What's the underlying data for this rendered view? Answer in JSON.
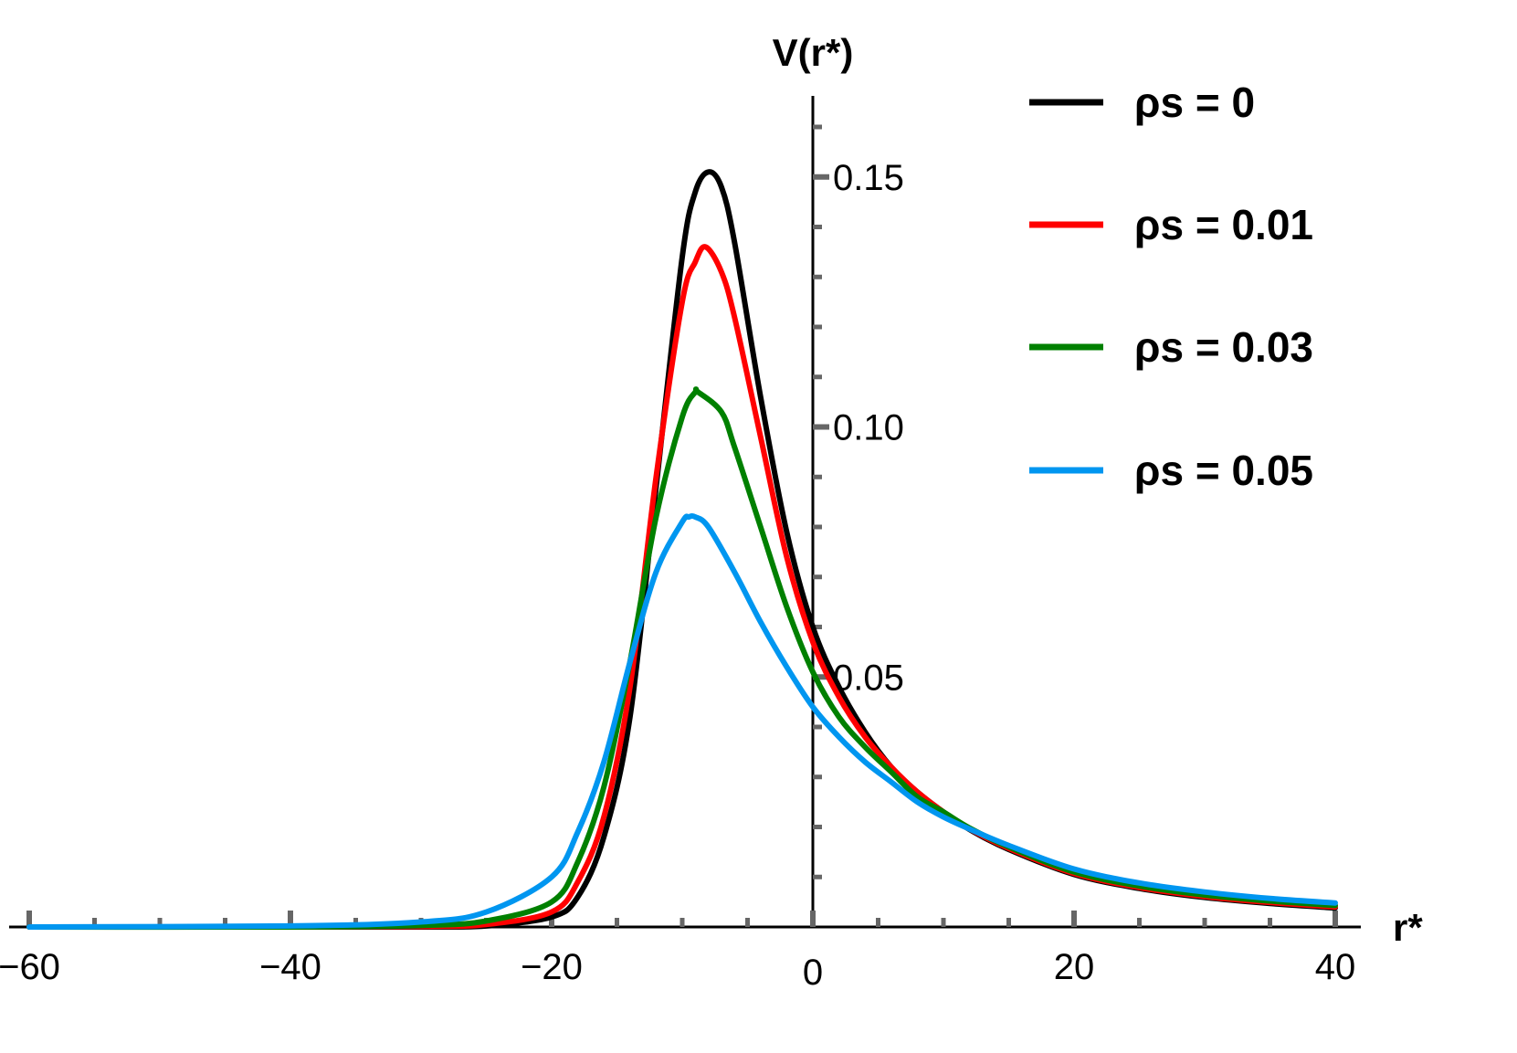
{
  "chart_data": {
    "type": "line",
    "ylabel": "V(r*)",
    "xlabel": "r*",
    "xlim": [
      -60,
      40
    ],
    "ylim": [
      0,
      0.165
    ],
    "x_ticks": [
      -60,
      -40,
      -20,
      0,
      20,
      40
    ],
    "x_tick_labels": [
      "−60",
      "−40",
      "−20",
      "0",
      "20",
      "40"
    ],
    "y_ticks": [
      0.05,
      0.1,
      0.15
    ],
    "y_tick_labels": [
      "0.05",
      "0.10",
      "0.15"
    ],
    "legend_position": "top-right",
    "series": [
      {
        "name": "ρs = 0",
        "color": "#000000",
        "x": [
          -60,
          -40,
          -30,
          -25,
          -20,
          -18,
          -16,
          -14,
          -12,
          -10,
          -9,
          -8,
          -7,
          -6,
          -4,
          -2,
          0,
          2,
          4,
          6,
          8,
          10,
          12,
          15,
          20,
          25,
          30,
          35,
          40
        ],
        "y": [
          0,
          0,
          0,
          0.0002,
          0.002,
          0.006,
          0.018,
          0.042,
          0.088,
          0.134,
          0.147,
          0.151,
          0.148,
          0.137,
          0.106,
          0.079,
          0.06,
          0.048,
          0.039,
          0.032,
          0.027,
          0.023,
          0.0195,
          0.0155,
          0.0105,
          0.0077,
          0.0059,
          0.0047,
          0.0038
        ]
      },
      {
        "name": "ρs = 0.01",
        "color": "#ff0000",
        "x": [
          -60,
          -40,
          -30,
          -25,
          -20,
          -18,
          -16,
          -14,
          -12,
          -10,
          -9,
          -8.2,
          -7,
          -6,
          -4,
          -2,
          0,
          2,
          4,
          6,
          8,
          10,
          12,
          15,
          20,
          25,
          30,
          35,
          40
        ],
        "y": [
          0,
          0,
          0.0001,
          0.0005,
          0.003,
          0.009,
          0.022,
          0.048,
          0.09,
          0.125,
          0.133,
          0.136,
          0.131,
          0.122,
          0.098,
          0.074,
          0.057,
          0.046,
          0.038,
          0.032,
          0.027,
          0.023,
          0.0196,
          0.0157,
          0.0107,
          0.0079,
          0.0061,
          0.0049,
          0.004
        ]
      },
      {
        "name": "ρs = 0.03",
        "color": "#008000",
        "x": [
          -60,
          -40,
          -30,
          -25,
          -20,
          -18,
          -16,
          -14,
          -12,
          -10,
          -9,
          -8.8,
          -7,
          -6,
          -4,
          -2,
          0,
          2,
          4,
          6,
          8,
          10,
          12,
          15,
          20,
          25,
          30,
          35,
          40
        ],
        "y": [
          0,
          0,
          0.0003,
          0.0012,
          0.005,
          0.013,
          0.028,
          0.053,
          0.082,
          0.102,
          0.107,
          0.107,
          0.103,
          0.096,
          0.08,
          0.064,
          0.051,
          0.042,
          0.036,
          0.031,
          0.026,
          0.023,
          0.0198,
          0.016,
          0.011,
          0.0082,
          0.0064,
          0.0052,
          0.0043
        ]
      },
      {
        "name": "ρs = 0.05",
        "color": "#0096f0",
        "x": [
          -60,
          -40,
          -30,
          -25,
          -20,
          -18,
          -16,
          -14,
          -12,
          -10,
          -9.5,
          -9,
          -8,
          -6,
          -4,
          -2,
          0,
          2,
          4,
          6,
          8,
          10,
          12,
          15,
          20,
          25,
          30,
          35,
          40
        ],
        "y": [
          0,
          0.0002,
          0.001,
          0.003,
          0.01,
          0.019,
          0.033,
          0.053,
          0.071,
          0.081,
          0.082,
          0.082,
          0.08,
          0.071,
          0.061,
          0.052,
          0.044,
          0.038,
          0.033,
          0.029,
          0.025,
          0.022,
          0.0196,
          0.0163,
          0.0116,
          0.0088,
          0.007,
          0.0057,
          0.0048
        ]
      }
    ]
  }
}
